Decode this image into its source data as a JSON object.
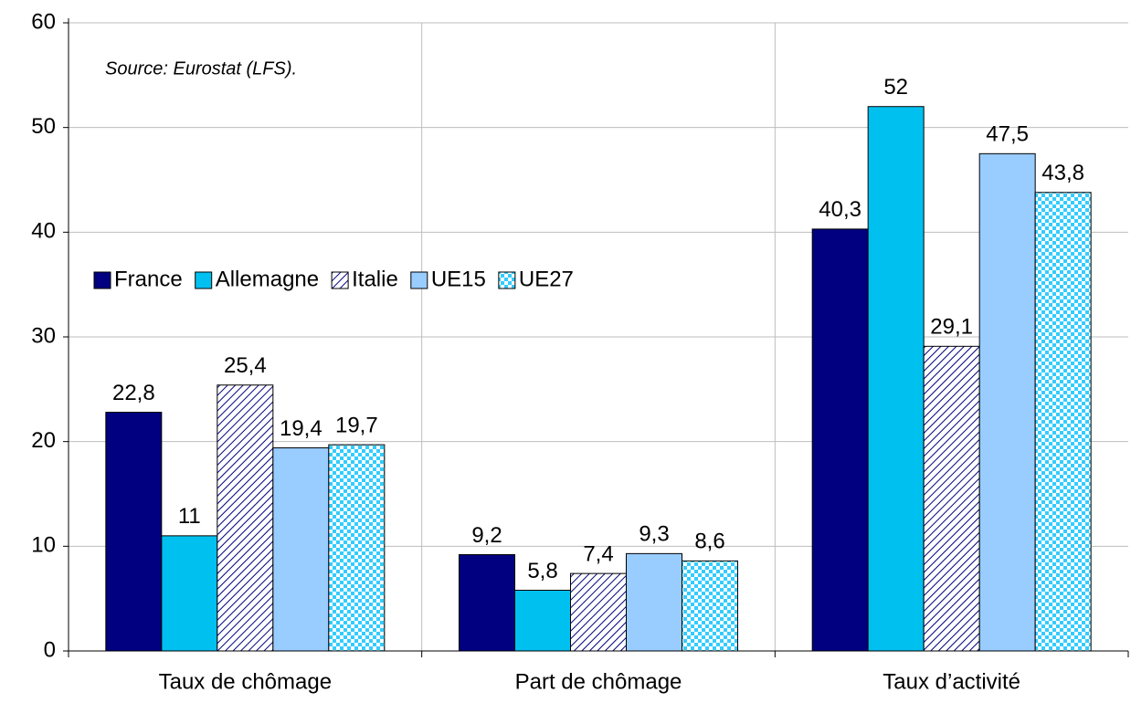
{
  "chart_data": {
    "type": "bar",
    "annotation": "Source: Eurostat (LFS).",
    "categories": [
      "Taux de chômage",
      "Part de chômage",
      "Taux d’activité"
    ],
    "series": [
      {
        "name": "France",
        "color": "#000080",
        "values": [
          22.8,
          9.2,
          40.3
        ],
        "value_labels": [
          "22,8",
          "9,2",
          "40,3"
        ]
      },
      {
        "name": "Allemagne",
        "color": "#00c0f0",
        "values": [
          11,
          5.8,
          52
        ],
        "value_labels": [
          "11",
          "5,8",
          "52"
        ]
      },
      {
        "name": "Italie",
        "color": "#000080",
        "pattern": "hatch",
        "values": [
          25.4,
          7.4,
          29.1
        ],
        "value_labels": [
          "25,4",
          "7,4",
          "29,1"
        ]
      },
      {
        "name": "UE15",
        "color": "#99ccff",
        "values": [
          19.4,
          9.3,
          47.5
        ],
        "value_labels": [
          "19,4",
          "9,3",
          "47,5"
        ]
      },
      {
        "name": "UE27",
        "color": "#33ccff",
        "pattern": "checker",
        "values": [
          19.7,
          8.6,
          43.8
        ],
        "value_labels": [
          "19,7",
          "8,6",
          "43,8"
        ]
      }
    ],
    "ylim": [
      0,
      60
    ],
    "yticks": [
      0,
      10,
      20,
      30,
      40,
      50,
      60
    ],
    "grid": true
  }
}
